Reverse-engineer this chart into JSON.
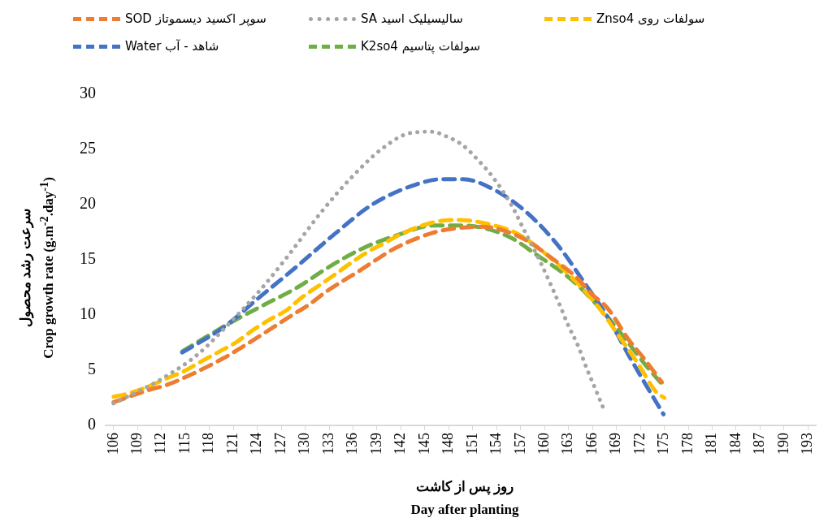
{
  "chart_data": {
    "type": "line",
    "xlabel": "روز پس از کاشت\nDay after planting",
    "ylabel": "سرعت رشد محصول\nCrop growth rate (g.m$^{-2}$.day$^{-1}$)",
    "xlim": [
      105,
      194
    ],
    "xticks": [
      106,
      109,
      112,
      115,
      118,
      121,
      124,
      127,
      130,
      133,
      136,
      139,
      142,
      145,
      148,
      151,
      154,
      157,
      160,
      163,
      166,
      169,
      172,
      175,
      178,
      181,
      184,
      187,
      190,
      193
    ],
    "ylim": [
      0,
      30
    ],
    "yticks": [
      0,
      5,
      10,
      15,
      20,
      25,
      30
    ],
    "grid": false,
    "legend": "top",
    "marker": "none",
    "series": [
      {
        "name": "سوپر اکسید دیسموتاز SOD",
        "color": "#ed7d31",
        "line_style": "dashed",
        "x": [
          106,
          110.4,
          112.8,
          115.4,
          119.8,
          121.9,
          124.1,
          128.4,
          130.4,
          132.8,
          136.8,
          138.9,
          141.4,
          145.8,
          148.3,
          152.1,
          155.5,
          158.1,
          160.8,
          164,
          165.9,
          167.9,
          170.5,
          172.4,
          174.7
        ],
        "values": [
          2.1,
          3.2,
          3.7,
          4.5,
          6.1,
          7,
          8,
          10,
          10.9,
          12.2,
          14,
          15,
          16.1,
          17.4,
          17.8,
          18,
          17.5,
          16.6,
          15.2,
          13.4,
          11.9,
          10.6,
          7.8,
          6.1,
          3.9
        ]
      },
      {
        "name": "سالیسیلیک اسید SA",
        "color": "#a5a5a5",
        "line_style": "dotted",
        "x": [
          106,
          108.3,
          112,
          116.5,
          119.5,
          124.3,
          127.8,
          132,
          135.6,
          139.7,
          143.3,
          146,
          147.3,
          149.7,
          151.7,
          153.5,
          155.8,
          157.7,
          159.6,
          160.8,
          161.9,
          163,
          164.2,
          165.2,
          166.3,
          167.4
        ],
        "values": [
          2,
          2.8,
          4.2,
          6.4,
          8.5,
          12.2,
          15.3,
          19.3,
          22.3,
          25.1,
          26.5,
          26.6,
          26.3,
          25.4,
          24,
          22.5,
          20,
          17.3,
          14.6,
          12.7,
          10.9,
          9,
          7.2,
          5.3,
          3.4,
          1.5
        ]
      },
      {
        "name": "سولفات روی Znso4",
        "color": "#ffc000",
        "line_style": "dashed",
        "x": [
          106,
          107.9,
          110.3,
          112.8,
          114.8,
          117,
          119.3,
          121.3,
          123.4,
          125.6,
          127.6,
          129.6,
          131.8,
          133.6,
          135.7,
          137.8,
          139.9,
          142.2,
          146.8,
          149.3,
          153.2,
          156.5,
          159.5,
          164.5,
          167.4,
          169.2,
          171.7,
          174,
          175
        ],
        "values": [
          2.6,
          2.9,
          3.5,
          4.3,
          4.9,
          5.8,
          6.7,
          7.5,
          8.6,
          9.6,
          10.4,
          11.6,
          12.7,
          13.6,
          14.7,
          15.7,
          16.5,
          17.4,
          18.5,
          18.6,
          18.2,
          17.4,
          15.9,
          12.6,
          10.1,
          8.2,
          5.6,
          3,
          2.5
        ]
      },
      {
        "name": "شاهد - آب Water",
        "color": "#4472c4",
        "line_style": "dashed",
        "x": [
          114.6,
          119.8,
          124.1,
          128.8,
          133.8,
          138.4,
          143.8,
          147.1,
          149.8,
          153.8,
          157.9,
          161.9,
          164.9,
          167.9,
          170.5,
          172.5,
          174.9
        ],
        "values": [
          6.6,
          8.9,
          11.5,
          14.3,
          17.4,
          20,
          21.8,
          22.3,
          22.3,
          21.3,
          19.2,
          16.1,
          13,
          9.8,
          6.4,
          3.9,
          1
        ]
      },
      {
        "name": "سولفات پتاسیم K2so4",
        "color": "#70ad47",
        "line_style": "dashed",
        "x": [
          114.6,
          120.4,
          124.8,
          128.8,
          133.1,
          137.1,
          141.4,
          146.1,
          149.8,
          155.5,
          158.9,
          163.2,
          166.2,
          169.5,
          172.5,
          175
        ],
        "values": [
          6.7,
          9.2,
          10.9,
          12.4,
          14.4,
          16,
          17.2,
          18.1,
          18.1,
          17.1,
          15.5,
          13.3,
          11.2,
          8.4,
          5.6,
          3.5
        ]
      }
    ]
  }
}
